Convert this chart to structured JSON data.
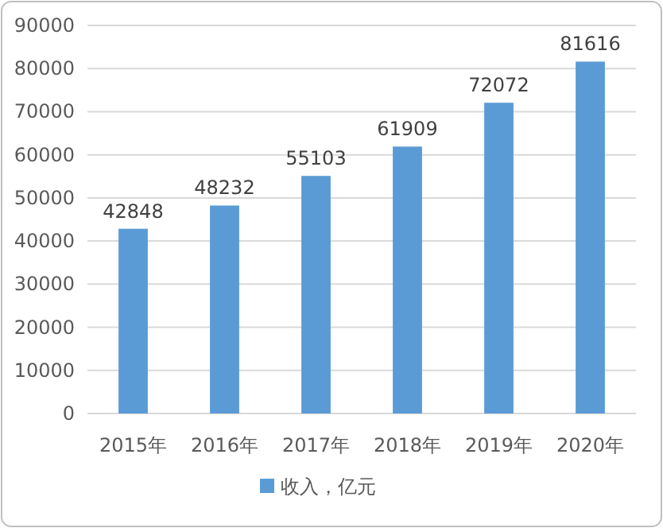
{
  "chart_data": {
    "type": "bar",
    "categories": [
      "2015年",
      "2016年",
      "2017年",
      "2018年",
      "2019年",
      "2020年"
    ],
    "series": [
      {
        "name": "收入，亿元",
        "color": "#5b9bd5",
        "values": [
          42848,
          48232,
          55103,
          61909,
          72072,
          81616
        ]
      }
    ],
    "data_labels": true,
    "ylim": [
      0,
      90000
    ],
    "yticks": [
      0,
      10000,
      20000,
      30000,
      40000,
      50000,
      60000,
      70000,
      80000,
      90000
    ],
    "grid": "y",
    "legend": "bottom"
  }
}
